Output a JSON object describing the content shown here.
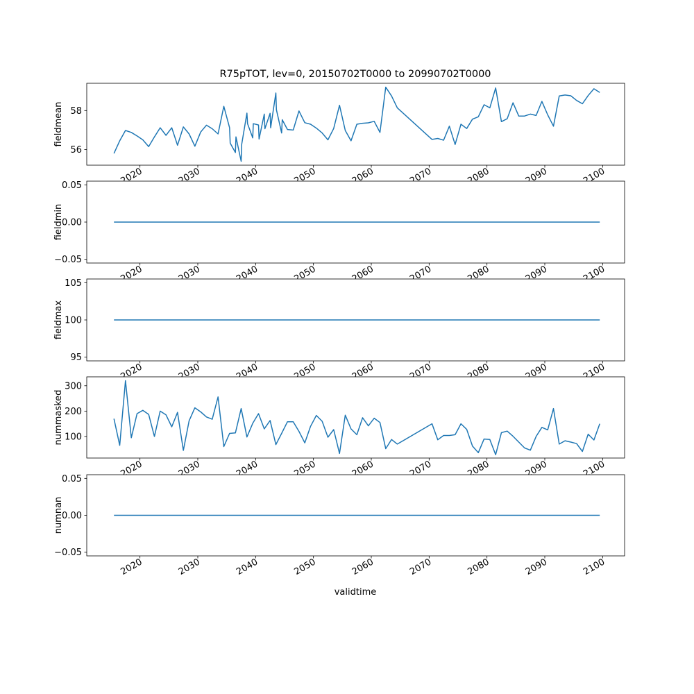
{
  "chart_data": {
    "type": "line",
    "title": "R75pTOT, lev=0, 20150702T0000 to 20990702T0000",
    "xlabel": "validtime",
    "series_color": "#1f77b4",
    "x_ticks": [
      "2020",
      "2030",
      "2040",
      "2050",
      "2060",
      "2070",
      "2080",
      "2090",
      "2100"
    ],
    "x_tick_values": [
      2020,
      2030,
      2040,
      2050,
      2060,
      2070,
      2080,
      2090,
      2100
    ],
    "xlim": [
      2010.8,
      2103.8
    ],
    "panels": [
      {
        "ylabel": "fieldmean",
        "ylim": [
          55.2,
          59.4
        ],
        "y_ticks": [
          "56",
          "58"
        ],
        "y_tick_values": [
          56,
          58
        ],
        "x": [
          2015.5,
          2016.5,
          2017.5,
          2018.5,
          2019.5,
          2020.5,
          2021.5,
          2022.5,
          2023.5,
          2024.5,
          2025.5,
          2026.5,
          2027.5,
          2028.5,
          2029.5,
          2030.5,
          2031.5,
          2032.5,
          2033.5,
          2034.5,
          2035.5,
          2035.6,
          2036.5,
          2036.6,
          2037.5,
          2037.6,
          2038.5,
          2038.6,
          2039.5,
          2039.6,
          2040.5,
          2040.6,
          2041.5,
          2041.6,
          2042.5,
          2042.6,
          2043.5,
          2043.6,
          2044.5,
          2044.6,
          2045.5,
          2046.5,
          2047.5,
          2048.5,
          2049.5,
          2050.5,
          2051.5,
          2052.5,
          2053.5,
          2054.5,
          2055.5,
          2056.5,
          2057.5,
          2058.5,
          2059.5,
          2060.5,
          2061.5,
          2062.5,
          2063.5,
          2064.5,
          2070.5,
          2071.5,
          2072.5,
          2073.5,
          2074.5,
          2075.5,
          2076.5,
          2077.5,
          2078.5,
          2079.5,
          2080.5,
          2081.5,
          2082.5,
          2083.5,
          2084.5,
          2085.5,
          2086.5,
          2087.5,
          2088.5,
          2089.5,
          2090.5,
          2091.5,
          2092.5,
          2093.5,
          2094.5,
          2095.5,
          2096.5,
          2097.5,
          2098.5,
          2099.5
        ],
        "y": [
          55.8,
          56.45,
          56.98,
          56.88,
          56.7,
          56.5,
          56.15,
          56.65,
          57.12,
          56.73,
          57.12,
          56.22,
          57.16,
          56.8,
          56.17,
          56.9,
          57.25,
          57.07,
          56.8,
          58.22,
          57.12,
          56.33,
          55.85,
          56.65,
          55.4,
          56.28,
          57.87,
          57.33,
          56.6,
          57.33,
          57.26,
          56.54,
          57.82,
          57.07,
          57.86,
          57.12,
          58.9,
          58.04,
          56.85,
          57.53,
          57.03,
          57.0,
          57.98,
          57.38,
          57.3,
          57.1,
          56.85,
          56.5,
          57.08,
          58.27,
          56.98,
          56.45,
          57.3,
          57.35,
          57.37,
          57.45,
          56.88,
          59.2,
          58.75,
          58.14,
          56.52,
          56.57,
          56.48,
          57.2,
          56.26,
          57.3,
          57.08,
          57.56,
          57.68,
          58.3,
          58.14,
          59.16,
          57.43,
          57.58,
          58.4,
          57.72,
          57.72,
          57.82,
          57.75,
          58.47,
          57.78,
          57.2,
          58.75,
          58.8,
          58.76,
          58.52,
          58.35,
          58.77,
          59.12,
          58.93
        ]
      },
      {
        "ylabel": "fieldmin",
        "ylim": [
          -0.055,
          0.055
        ],
        "y_ticks": [
          "−0.05",
          "0.00",
          "0.05"
        ],
        "y_tick_values": [
          -0.05,
          0.0,
          0.05
        ],
        "x": [
          2015.5,
          2099.5
        ],
        "y": [
          0.0,
          0.0
        ]
      },
      {
        "ylabel": "fieldmax",
        "ylim": [
          94.5,
          105.5
        ],
        "y_ticks": [
          "95",
          "100",
          "105"
        ],
        "y_tick_values": [
          95,
          100,
          105
        ],
        "x": [
          2015.5,
          2099.5
        ],
        "y": [
          100,
          100
        ]
      },
      {
        "ylabel": "nummasked",
        "ylim": [
          15,
          335
        ],
        "y_ticks": [
          "100",
          "200",
          "300"
        ],
        "y_tick_values": [
          100,
          200,
          300
        ],
        "x": [
          2015.5,
          2016.5,
          2017.5,
          2018.5,
          2019.5,
          2020.5,
          2021.5,
          2022.5,
          2023.5,
          2024.5,
          2025.5,
          2026.5,
          2027.5,
          2028.5,
          2029.5,
          2030.5,
          2031.5,
          2032.5,
          2033.5,
          2034.5,
          2035.5,
          2036.5,
          2037.5,
          2038.5,
          2039.5,
          2040.5,
          2041.5,
          2042.5,
          2043.5,
          2044.5,
          2045.5,
          2046.5,
          2047.5,
          2048.5,
          2049.5,
          2050.5,
          2051.5,
          2052.5,
          2053.5,
          2054.5,
          2055.5,
          2056.5,
          2057.5,
          2058.5,
          2059.5,
          2060.5,
          2061.5,
          2062.5,
          2063.5,
          2064.5,
          2070.5,
          2071.5,
          2072.5,
          2073.5,
          2074.5,
          2075.5,
          2076.5,
          2077.5,
          2078.5,
          2079.5,
          2080.5,
          2081.5,
          2082.5,
          2083.5,
          2084.5,
          2085.5,
          2086.5,
          2087.5,
          2088.5,
          2089.5,
          2090.5,
          2091.5,
          2092.5,
          2093.5,
          2094.5,
          2095.5,
          2096.5,
          2097.5,
          2098.5,
          2099.5
        ],
        "y": [
          170,
          65,
          320,
          95,
          190,
          203,
          187,
          100,
          200,
          185,
          138,
          195,
          45,
          162,
          213,
          197,
          177,
          168,
          256,
          60,
          112,
          114,
          210,
          98,
          152,
          190,
          130,
          163,
          68,
          112,
          158,
          158,
          120,
          75,
          140,
          183,
          160,
          97,
          127,
          33,
          184,
          130,
          107,
          174,
          142,
          172,
          155,
          52,
          88,
          70,
          150,
          87,
          104,
          104,
          107,
          150,
          128,
          62,
          36,
          90,
          88,
          28,
          115,
          121,
          101,
          78,
          55,
          46,
          100,
          136,
          126,
          210,
          70,
          83,
          78,
          72,
          41,
          109,
          86,
          150
        ]
      },
      {
        "ylabel": "numnan",
        "ylim": [
          -0.055,
          0.055
        ],
        "y_ticks": [
          "−0.05",
          "0.00",
          "0.05"
        ],
        "y_tick_values": [
          -0.05,
          0.0,
          0.05
        ],
        "x": [
          2015.5,
          2099.5
        ],
        "y": [
          0.0,
          0.0
        ]
      }
    ]
  }
}
